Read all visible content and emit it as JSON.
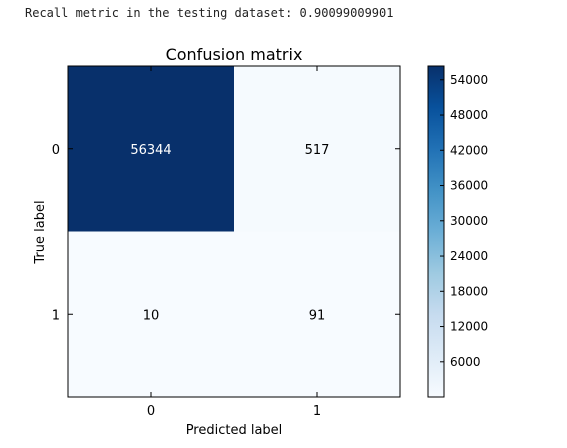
{
  "output": {
    "label": "Recall metric in the testing dataset: ",
    "value": "0.90099009901"
  },
  "chart_data": {
    "type": "heatmap",
    "title": "Confusion matrix",
    "xlabel": "Predicted label",
    "ylabel": "True label",
    "x_ticks": [
      "0",
      "1"
    ],
    "y_ticks": [
      "0",
      "1"
    ],
    "matrix": [
      [
        56344,
        517
      ],
      [
        10,
        91
      ]
    ],
    "colormap": "Blues",
    "colors": {
      "low": "#f7fbff",
      "high": "#08306b",
      "text_dark_bg": "#ffffff",
      "text_light_bg": "#000000"
    },
    "colorbar": {
      "range": [
        10,
        56344
      ],
      "ticks": [
        6000,
        12000,
        18000,
        24000,
        30000,
        36000,
        42000,
        48000,
        54000
      ]
    },
    "grid": false
  }
}
